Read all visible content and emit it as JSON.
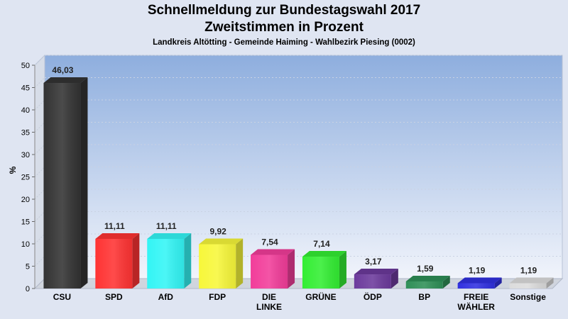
{
  "header": {
    "title": "Schnellmeldung zur Bundestagswahl 2017",
    "subtitle": "Zweitstimmen in Prozent",
    "location": "Landkreis Altötting - Gemeinde Haiming - Wahlbezirk Piesing (0002)"
  },
  "chart_data": {
    "type": "bar",
    "title": "Schnellmeldung zur Bundestagswahl 2017",
    "subtitle": "Zweitstimmen in Prozent",
    "xlabel": "",
    "ylabel": "%",
    "ylim": [
      0,
      50
    ],
    "yticks": [
      0,
      5,
      10,
      15,
      20,
      25,
      30,
      35,
      40,
      45,
      50
    ],
    "grid": true,
    "categories": [
      [
        "CSU"
      ],
      [
        "SPD"
      ],
      [
        "AfD"
      ],
      [
        "FDP"
      ],
      [
        "DIE",
        "LINKE"
      ],
      [
        "GRÜNE"
      ],
      [
        "ÖDP"
      ],
      [
        "BP"
      ],
      [
        "FREIE",
        "WÄHLER"
      ],
      [
        "Sonstige"
      ]
    ],
    "values": [
      46.03,
      11.11,
      11.11,
      9.92,
      7.54,
      7.14,
      3.17,
      1.59,
      1.19,
      1.19
    ],
    "value_labels": [
      "46,03",
      "11,11",
      "11,11",
      "9,92",
      "7,54",
      "7,14",
      "3,17",
      "1,59",
      "1,19",
      "1,19"
    ],
    "colors": [
      "#333333",
      "#ff3333",
      "#33f5f5",
      "#f7f73a",
      "#f23d9a",
      "#33ee33",
      "#6c3a9c",
      "#2f8f57",
      "#3030e0",
      "#dcdcdc"
    ]
  }
}
